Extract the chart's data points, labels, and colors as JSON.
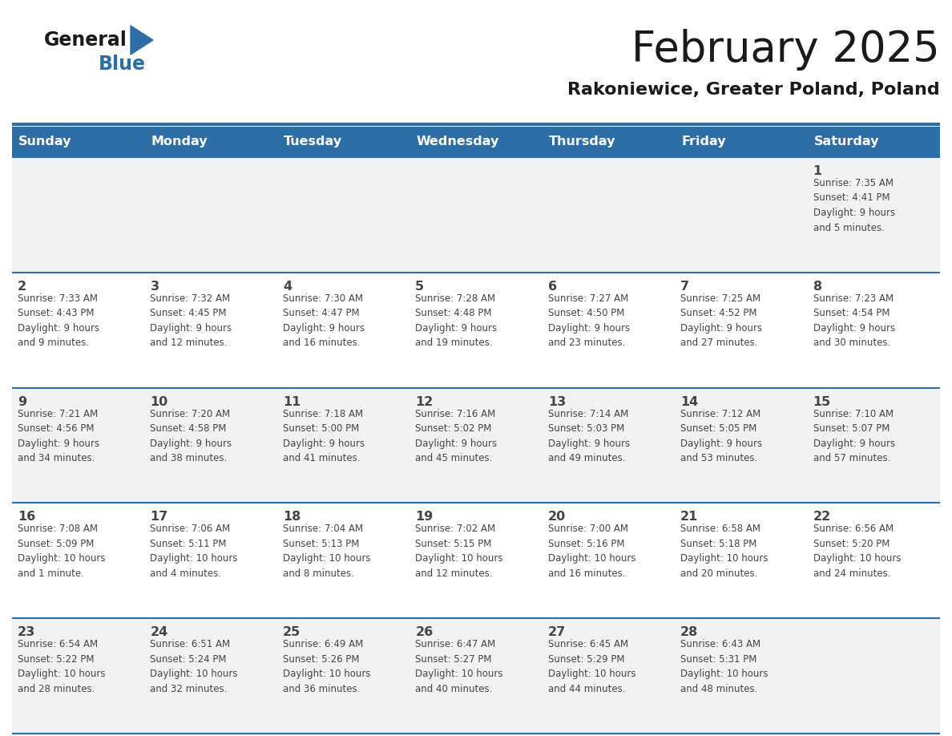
{
  "title": "February 2025",
  "subtitle": "Rakoniewice, Greater Poland, Poland",
  "header_bg": "#2E6EA6",
  "header_text_color": "#FFFFFF",
  "cell_bg_week1": "#F2F2F2",
  "cell_bg_week2": "#FFFFFF",
  "cell_bg_week3": "#F2F2F2",
  "cell_bg_week4": "#FFFFFF",
  "cell_bg_week5": "#F2F2F2",
  "border_color": "#2E6EA6",
  "sep_line_color": "#3A6EA5",
  "text_color": "#444444",
  "days_of_week": [
    "Sunday",
    "Monday",
    "Tuesday",
    "Wednesday",
    "Thursday",
    "Friday",
    "Saturday"
  ],
  "weeks": [
    [
      {
        "day": "",
        "info": ""
      },
      {
        "day": "",
        "info": ""
      },
      {
        "day": "",
        "info": ""
      },
      {
        "day": "",
        "info": ""
      },
      {
        "day": "",
        "info": ""
      },
      {
        "day": "",
        "info": ""
      },
      {
        "day": "1",
        "info": "Sunrise: 7:35 AM\nSunset: 4:41 PM\nDaylight: 9 hours\nand 5 minutes."
      }
    ],
    [
      {
        "day": "2",
        "info": "Sunrise: 7:33 AM\nSunset: 4:43 PM\nDaylight: 9 hours\nand 9 minutes."
      },
      {
        "day": "3",
        "info": "Sunrise: 7:32 AM\nSunset: 4:45 PM\nDaylight: 9 hours\nand 12 minutes."
      },
      {
        "day": "4",
        "info": "Sunrise: 7:30 AM\nSunset: 4:47 PM\nDaylight: 9 hours\nand 16 minutes."
      },
      {
        "day": "5",
        "info": "Sunrise: 7:28 AM\nSunset: 4:48 PM\nDaylight: 9 hours\nand 19 minutes."
      },
      {
        "day": "6",
        "info": "Sunrise: 7:27 AM\nSunset: 4:50 PM\nDaylight: 9 hours\nand 23 minutes."
      },
      {
        "day": "7",
        "info": "Sunrise: 7:25 AM\nSunset: 4:52 PM\nDaylight: 9 hours\nand 27 minutes."
      },
      {
        "day": "8",
        "info": "Sunrise: 7:23 AM\nSunset: 4:54 PM\nDaylight: 9 hours\nand 30 minutes."
      }
    ],
    [
      {
        "day": "9",
        "info": "Sunrise: 7:21 AM\nSunset: 4:56 PM\nDaylight: 9 hours\nand 34 minutes."
      },
      {
        "day": "10",
        "info": "Sunrise: 7:20 AM\nSunset: 4:58 PM\nDaylight: 9 hours\nand 38 minutes."
      },
      {
        "day": "11",
        "info": "Sunrise: 7:18 AM\nSunset: 5:00 PM\nDaylight: 9 hours\nand 41 minutes."
      },
      {
        "day": "12",
        "info": "Sunrise: 7:16 AM\nSunset: 5:02 PM\nDaylight: 9 hours\nand 45 minutes."
      },
      {
        "day": "13",
        "info": "Sunrise: 7:14 AM\nSunset: 5:03 PM\nDaylight: 9 hours\nand 49 minutes."
      },
      {
        "day": "14",
        "info": "Sunrise: 7:12 AM\nSunset: 5:05 PM\nDaylight: 9 hours\nand 53 minutes."
      },
      {
        "day": "15",
        "info": "Sunrise: 7:10 AM\nSunset: 5:07 PM\nDaylight: 9 hours\nand 57 minutes."
      }
    ],
    [
      {
        "day": "16",
        "info": "Sunrise: 7:08 AM\nSunset: 5:09 PM\nDaylight: 10 hours\nand 1 minute."
      },
      {
        "day": "17",
        "info": "Sunrise: 7:06 AM\nSunset: 5:11 PM\nDaylight: 10 hours\nand 4 minutes."
      },
      {
        "day": "18",
        "info": "Sunrise: 7:04 AM\nSunset: 5:13 PM\nDaylight: 10 hours\nand 8 minutes."
      },
      {
        "day": "19",
        "info": "Sunrise: 7:02 AM\nSunset: 5:15 PM\nDaylight: 10 hours\nand 12 minutes."
      },
      {
        "day": "20",
        "info": "Sunrise: 7:00 AM\nSunset: 5:16 PM\nDaylight: 10 hours\nand 16 minutes."
      },
      {
        "day": "21",
        "info": "Sunrise: 6:58 AM\nSunset: 5:18 PM\nDaylight: 10 hours\nand 20 minutes."
      },
      {
        "day": "22",
        "info": "Sunrise: 6:56 AM\nSunset: 5:20 PM\nDaylight: 10 hours\nand 24 minutes."
      }
    ],
    [
      {
        "day": "23",
        "info": "Sunrise: 6:54 AM\nSunset: 5:22 PM\nDaylight: 10 hours\nand 28 minutes."
      },
      {
        "day": "24",
        "info": "Sunrise: 6:51 AM\nSunset: 5:24 PM\nDaylight: 10 hours\nand 32 minutes."
      },
      {
        "day": "25",
        "info": "Sunrise: 6:49 AM\nSunset: 5:26 PM\nDaylight: 10 hours\nand 36 minutes."
      },
      {
        "day": "26",
        "info": "Sunrise: 6:47 AM\nSunset: 5:27 PM\nDaylight: 10 hours\nand 40 minutes."
      },
      {
        "day": "27",
        "info": "Sunrise: 6:45 AM\nSunset: 5:29 PM\nDaylight: 10 hours\nand 44 minutes."
      },
      {
        "day": "28",
        "info": "Sunrise: 6:43 AM\nSunset: 5:31 PM\nDaylight: 10 hours\nand 48 minutes."
      },
      {
        "day": "",
        "info": ""
      }
    ]
  ]
}
